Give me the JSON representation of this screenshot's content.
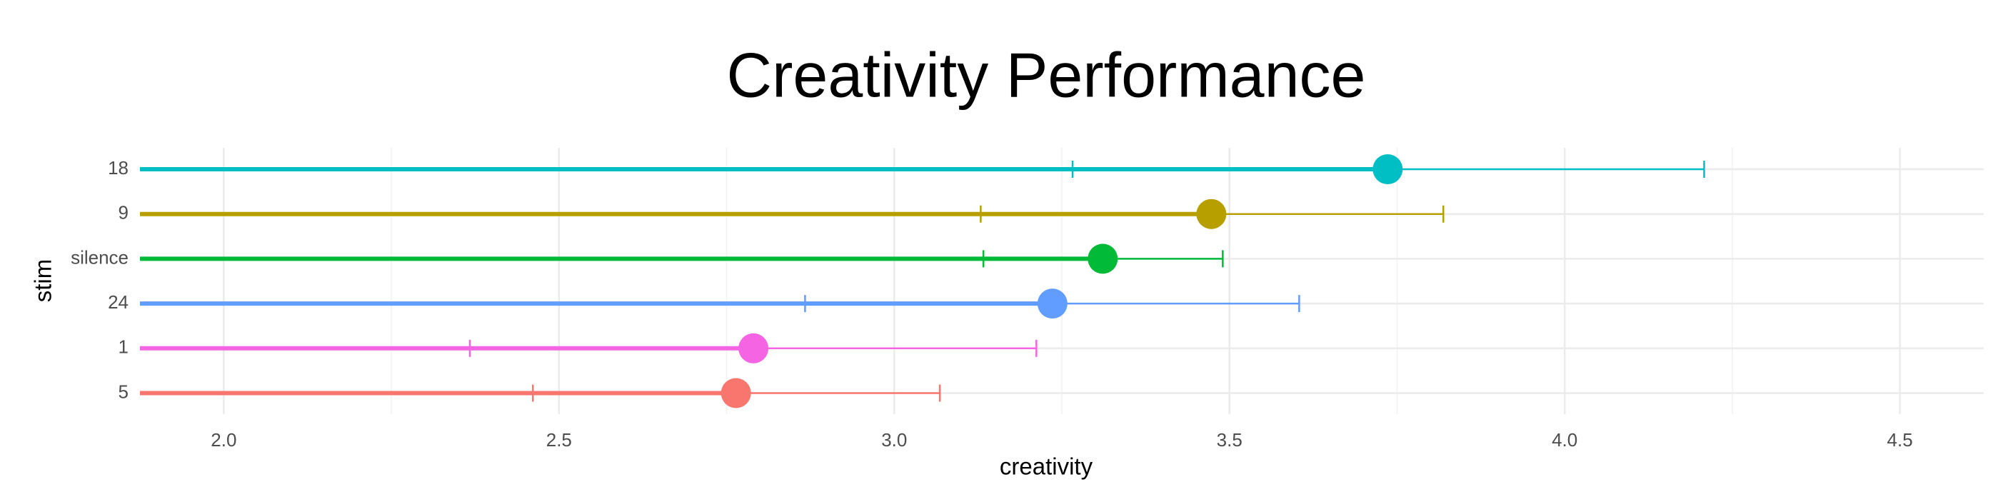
{
  "chart_data": {
    "type": "dot_errorbar",
    "title": "Creativity Performance",
    "x_label": "creativity",
    "y_label": "stim",
    "categories": [
      "18",
      "9",
      "silence",
      "24",
      "1",
      "5"
    ],
    "values": [
      3.736,
      3.473,
      3.311,
      3.236,
      2.79,
      2.764
    ],
    "error_low": [
      3.266,
      3.129,
      3.133,
      2.867,
      2.367,
      2.461
    ],
    "error_high": [
      4.208,
      3.819,
      3.49,
      3.604,
      3.212,
      3.068
    ],
    "colors": [
      "#00bfc4",
      "#b79f00",
      "#00ba38",
      "#619cff",
      "#f564e3",
      "#f8766d"
    ],
    "xlim": [
      1.875,
      4.625
    ],
    "xticks": [
      {
        "value": 2,
        "label": "2.0"
      },
      2.5,
      {
        "value": 3,
        "label": "3.0"
      },
      3.5,
      {
        "value": 4,
        "label": "4.0"
      },
      4.5
    ],
    "grid": true
  }
}
